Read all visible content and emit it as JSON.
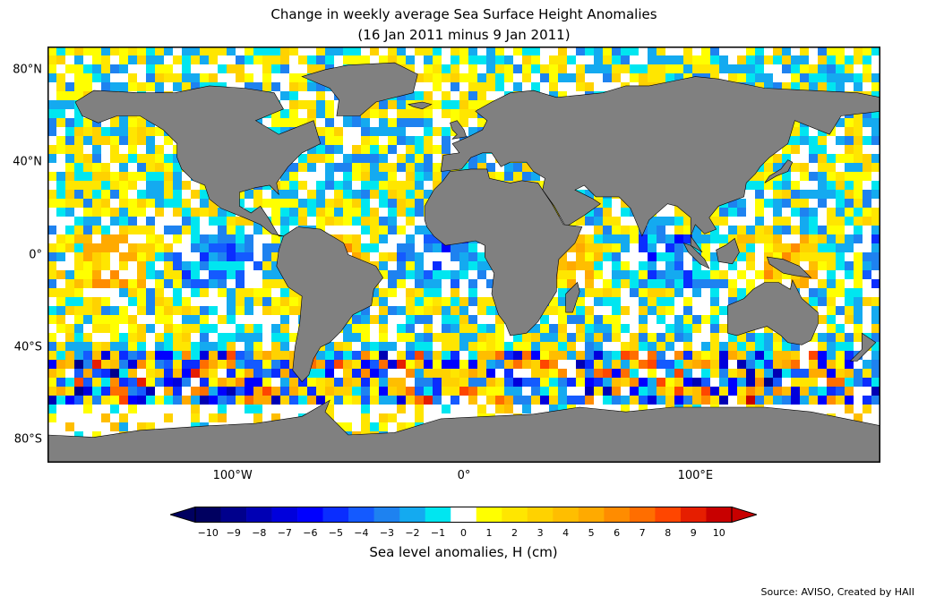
{
  "title": "Change in weekly average Sea Surface Height Anomalies",
  "subtitle": "(16 Jan 2011 minus 9 Jan 2011)",
  "colors": {
    "land": "#808080",
    "coast": "#000000",
    "ocean_zero": "#ffffff",
    "scale": [
      "#000060",
      "#00008c",
      "#0000b4",
      "#0000dc",
      "#0000ff",
      "#0a2dff",
      "#145aff",
      "#1e82f0",
      "#14aaf0",
      "#00e6f0",
      "#ffffff",
      "#ffff00",
      "#ffe600",
      "#ffd200",
      "#ffbe00",
      "#ffaa00",
      "#ff8c00",
      "#ff6e00",
      "#ff4600",
      "#e61e00",
      "#c80000"
    ]
  },
  "latitude_labels": [
    {
      "text": "80°N",
      "lat": 80
    },
    {
      "text": "40°N",
      "lat": 40
    },
    {
      "text": "0°",
      "lat": 0
    },
    {
      "text": "40°S",
      "lat": -40
    },
    {
      "text": "80°S",
      "lat": -80
    }
  ],
  "longitude_labels": [
    {
      "text": "100°W",
      "lon": -100
    },
    {
      "text": "0°",
      "lon": 0
    },
    {
      "text": "100°E",
      "lon": 100
    }
  ],
  "map_extent": {
    "lon": [
      -180,
      180
    ],
    "lat": [
      -90,
      90
    ]
  },
  "colorbar": {
    "ticks": [
      "−10",
      "−9",
      "−8",
      "−7",
      "−6",
      "−5",
      "−4",
      "−3",
      "−2",
      "−1",
      "0",
      "1",
      "2",
      "3",
      "4",
      "5",
      "6",
      "7",
      "8",
      "9",
      "10"
    ],
    "label": "Sea level anomalies, H (cm)",
    "range": [
      -10,
      10
    ],
    "extend": "both"
  },
  "source": "Source: AVISO, Created by HAII"
}
